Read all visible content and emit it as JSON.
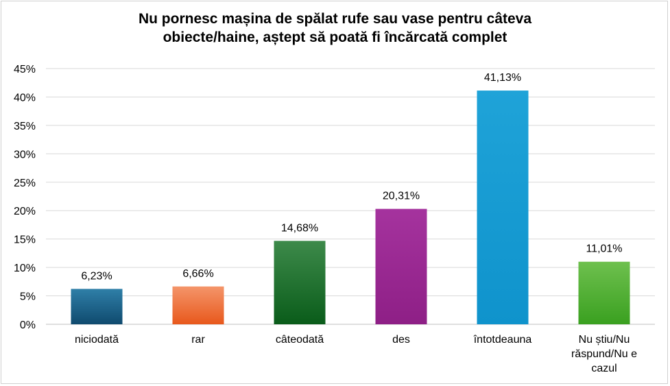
{
  "chart_data": {
    "type": "bar",
    "title": [
      "Nu pornesc mașina de spălat rufe sau vase pentru câteva",
      "obiecte/haine, aștept să poată fi încărcată complet"
    ],
    "categories": [
      [
        "niciodată"
      ],
      [
        "rar"
      ],
      [
        "câteodată"
      ],
      [
        "des"
      ],
      [
        "întotdeauna"
      ],
      [
        "Nu știu/Nu",
        "răspund/Nu e",
        "cazul"
      ]
    ],
    "values": [
      6.23,
      6.66,
      14.68,
      20.31,
      41.13,
      11.01
    ],
    "data_labels": [
      "6,23%",
      "6,66%",
      "14,68%",
      "20,31%",
      "41,13%",
      "11,01%"
    ],
    "yticks": [
      "0%",
      "5%",
      "10%",
      "15%",
      "20%",
      "25%",
      "30%",
      "35%",
      "40%",
      "45%"
    ],
    "ylim": [
      0,
      45
    ],
    "grid": true,
    "colors": [
      [
        "#2f7fa8",
        "#0f4a6e"
      ],
      [
        "#f4956a",
        "#e8581c"
      ],
      [
        "#3d8a4a",
        "#0a5c1a"
      ],
      [
        "#a5339e",
        "#8e1f86"
      ],
      [
        "#1fa3d8",
        "#0f93cc"
      ],
      [
        "#6ec04e",
        "#3aa020"
      ]
    ]
  }
}
